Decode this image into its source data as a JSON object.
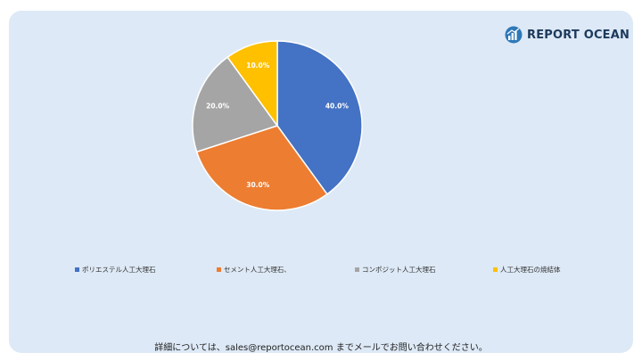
{
  "brand": {
    "name": "REPORT OCEAN"
  },
  "chart_data": {
    "type": "pie",
    "categories": [
      "ポリエステル人工大理石",
      "セメント人工大理石、",
      "コンポジット人工大理石",
      "人工大理石の焼結体"
    ],
    "values": [
      40.0,
      30.0,
      20.0,
      10.0
    ],
    "labels": [
      "40.0%",
      "30.0%",
      "20.0%",
      "10.0%"
    ],
    "colors": [
      "#4472c4",
      "#ed7d31",
      "#a5a5a5",
      "#ffc000"
    ],
    "legend_position": "bottom",
    "start_angle_deg": 0,
    "direction": "clockwise"
  },
  "footer": {
    "text": "詳細については、sales@reportocean.com までメールでお問い合わせください。"
  }
}
